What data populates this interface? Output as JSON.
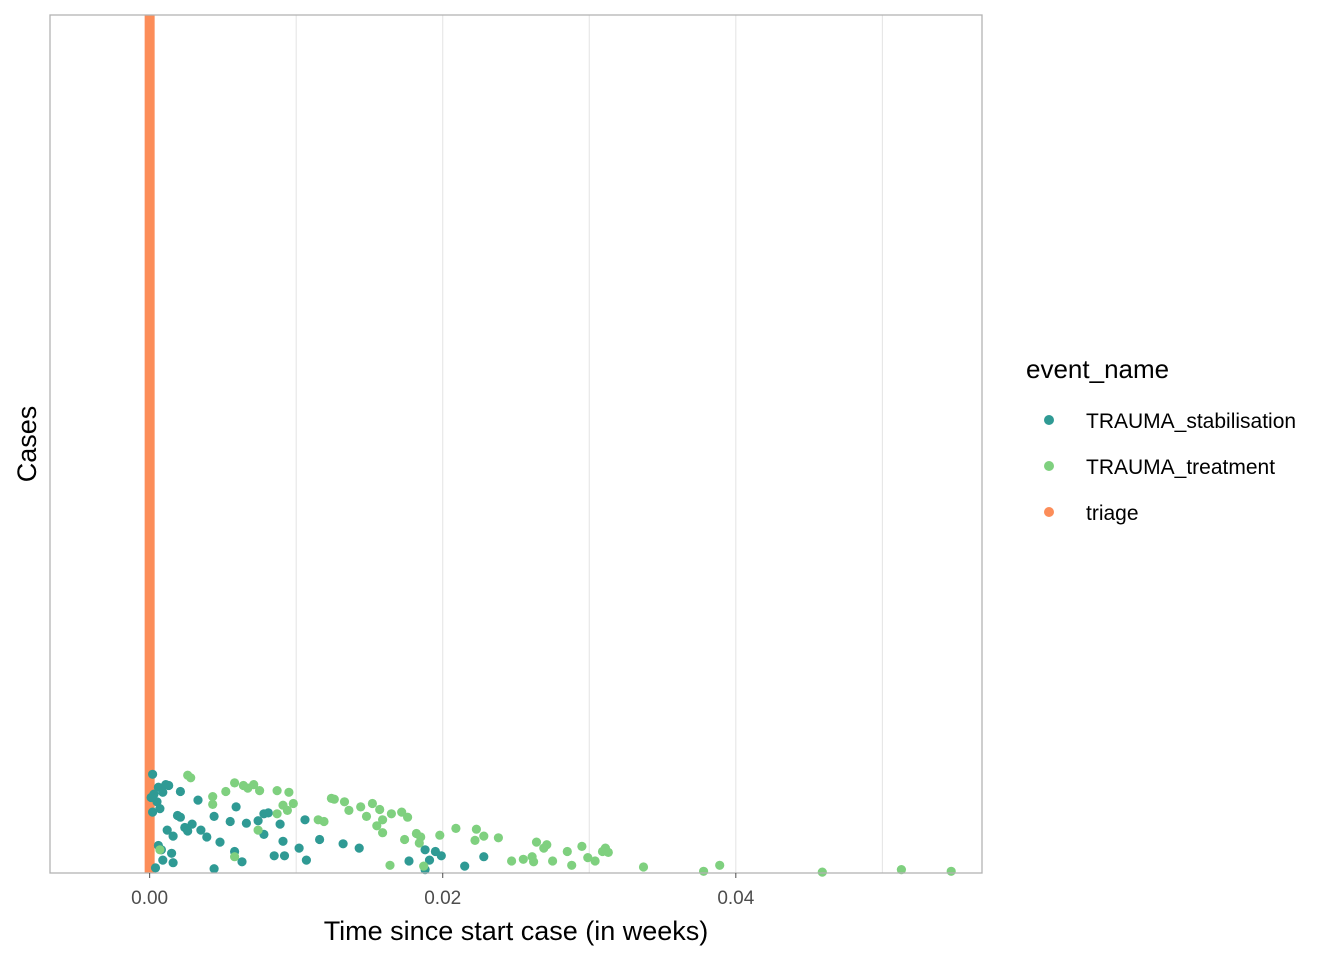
{
  "chart_data": {
    "type": "scatter",
    "xlabel": "Time since start case (in weeks)",
    "ylabel": "Cases",
    "xlim": [
      -0.0068,
      0.0568
    ],
    "x_ticks": [
      0.0,
      0.02,
      0.04
    ],
    "x_tick_labels": [
      "0.00",
      "0.02",
      "0.04"
    ],
    "y_ticks_visible": false,
    "grid": "vertical major lines only",
    "legend_title": "event_name",
    "legend_position": "right",
    "series": [
      {
        "name": "TRAUMA_stabilisation",
        "color": "#2f9a94",
        "points": [
          [
            0.0002,
            0.115
          ],
          [
            0.0006,
            0.1
          ],
          [
            0.0008,
            0.099
          ],
          [
            0.0011,
            0.103
          ],
          [
            0.0013,
            0.102
          ],
          [
            0.0021,
            0.095
          ],
          [
            0.0003,
            0.092
          ],
          [
            0.0009,
            0.094
          ],
          [
            0.0033,
            0.085
          ],
          [
            0.0005,
            0.083
          ],
          [
            0.0001,
            0.088
          ],
          [
            0.0002,
            0.071
          ],
          [
            0.0007,
            0.075
          ],
          [
            0.0019,
            0.067
          ],
          [
            0.0044,
            0.066
          ],
          [
            0.0059,
            0.077
          ],
          [
            0.0078,
            0.069
          ],
          [
            0.0074,
            0.061
          ],
          [
            0.0081,
            0.07
          ],
          [
            0.0029,
            0.057
          ],
          [
            0.0024,
            0.053
          ],
          [
            0.0026,
            0.049
          ],
          [
            0.0016,
            0.043
          ],
          [
            0.0039,
            0.042
          ],
          [
            0.0048,
            0.036
          ],
          [
            0.0066,
            0.058
          ],
          [
            0.0089,
            0.057
          ],
          [
            0.0106,
            0.062
          ],
          [
            0.0091,
            0.037
          ],
          [
            0.0116,
            0.039
          ],
          [
            0.0132,
            0.034
          ],
          [
            0.0078,
            0.045
          ],
          [
            0.0102,
            0.029
          ],
          [
            0.0063,
            0.013
          ],
          [
            0.0058,
            0.025
          ],
          [
            0.0085,
            0.02
          ],
          [
            0.0107,
            0.015
          ],
          [
            0.0092,
            0.02
          ],
          [
            0.0044,
            0.005
          ],
          [
            0.0015,
            0.023
          ],
          [
            0.0008,
            0.027
          ],
          [
            0.0006,
            0.032
          ],
          [
            0.0016,
            0.012
          ],
          [
            0.0009,
            0.015
          ],
          [
            0.0004,
            0.006
          ],
          [
            0.0143,
            0.029
          ],
          [
            0.0188,
            0.027
          ],
          [
            0.0191,
            0.015
          ],
          [
            0.0195,
            0.025
          ],
          [
            0.0199,
            0.02
          ],
          [
            0.0177,
            0.014
          ],
          [
            0.0228,
            0.019
          ],
          [
            0.0215,
            0.008
          ],
          [
            0.0188,
            0.004
          ],
          [
            0.0012,
            0.05
          ],
          [
            0.0035,
            0.05
          ],
          [
            0.0055,
            0.06
          ],
          [
            0.0021,
            0.065
          ]
        ]
      },
      {
        "name": "TRAUMA_treatment",
        "color": "#7fd07f",
        "points": [
          [
            0.0026,
            0.114
          ],
          [
            0.0028,
            0.111
          ],
          [
            0.0058,
            0.105
          ],
          [
            0.0067,
            0.099
          ],
          [
            0.0075,
            0.096
          ],
          [
            0.0064,
            0.102
          ],
          [
            0.0071,
            0.103
          ],
          [
            0.0052,
            0.095
          ],
          [
            0.0043,
            0.089
          ],
          [
            0.0087,
            0.096
          ],
          [
            0.0095,
            0.094
          ],
          [
            0.0043,
            0.08
          ],
          [
            0.0091,
            0.079
          ],
          [
            0.0098,
            0.081
          ],
          [
            0.0087,
            0.069
          ],
          [
            0.0094,
            0.073
          ],
          [
            0.0115,
            0.062
          ],
          [
            0.0119,
            0.06
          ],
          [
            0.0124,
            0.087
          ],
          [
            0.0126,
            0.086
          ],
          [
            0.0133,
            0.083
          ],
          [
            0.0144,
            0.077
          ],
          [
            0.0152,
            0.081
          ],
          [
            0.0157,
            0.074
          ],
          [
            0.0136,
            0.073
          ],
          [
            0.0148,
            0.066
          ],
          [
            0.0159,
            0.062
          ],
          [
            0.0155,
            0.055
          ],
          [
            0.0165,
            0.069
          ],
          [
            0.0172,
            0.071
          ],
          [
            0.0176,
            0.065
          ],
          [
            0.0159,
            0.047
          ],
          [
            0.0182,
            0.046
          ],
          [
            0.0185,
            0.042
          ],
          [
            0.0198,
            0.044
          ],
          [
            0.0174,
            0.039
          ],
          [
            0.0209,
            0.052
          ],
          [
            0.0223,
            0.051
          ],
          [
            0.0228,
            0.043
          ],
          [
            0.0238,
            0.041
          ],
          [
            0.0222,
            0.038
          ],
          [
            0.0264,
            0.036
          ],
          [
            0.0271,
            0.033
          ],
          [
            0.0295,
            0.031
          ],
          [
            0.0269,
            0.029
          ],
          [
            0.0311,
            0.029
          ],
          [
            0.0309,
            0.025
          ],
          [
            0.0285,
            0.025
          ],
          [
            0.0299,
            0.018
          ],
          [
            0.0313,
            0.024
          ],
          [
            0.0261,
            0.019
          ],
          [
            0.0255,
            0.016
          ],
          [
            0.0262,
            0.013
          ],
          [
            0.0275,
            0.014
          ],
          [
            0.0288,
            0.009
          ],
          [
            0.0304,
            0.014
          ],
          [
            0.0337,
            0.007
          ],
          [
            0.0389,
            0.009
          ],
          [
            0.0378,
            0.002
          ],
          [
            0.0459,
            0.001
          ],
          [
            0.0513,
            0.004
          ],
          [
            0.0547,
            0.002
          ],
          [
            0.0164,
            0.009
          ],
          [
            0.0187,
            0.008
          ],
          [
            0.0247,
            0.014
          ],
          [
            0.0184,
            0.035
          ],
          [
            0.0007,
            0.027
          ],
          [
            0.0058,
            0.019
          ],
          [
            0.0074,
            0.05
          ]
        ]
      },
      {
        "name": "triage",
        "color": "#fc8d59",
        "x_at_zero_count": 1
      }
    ]
  }
}
